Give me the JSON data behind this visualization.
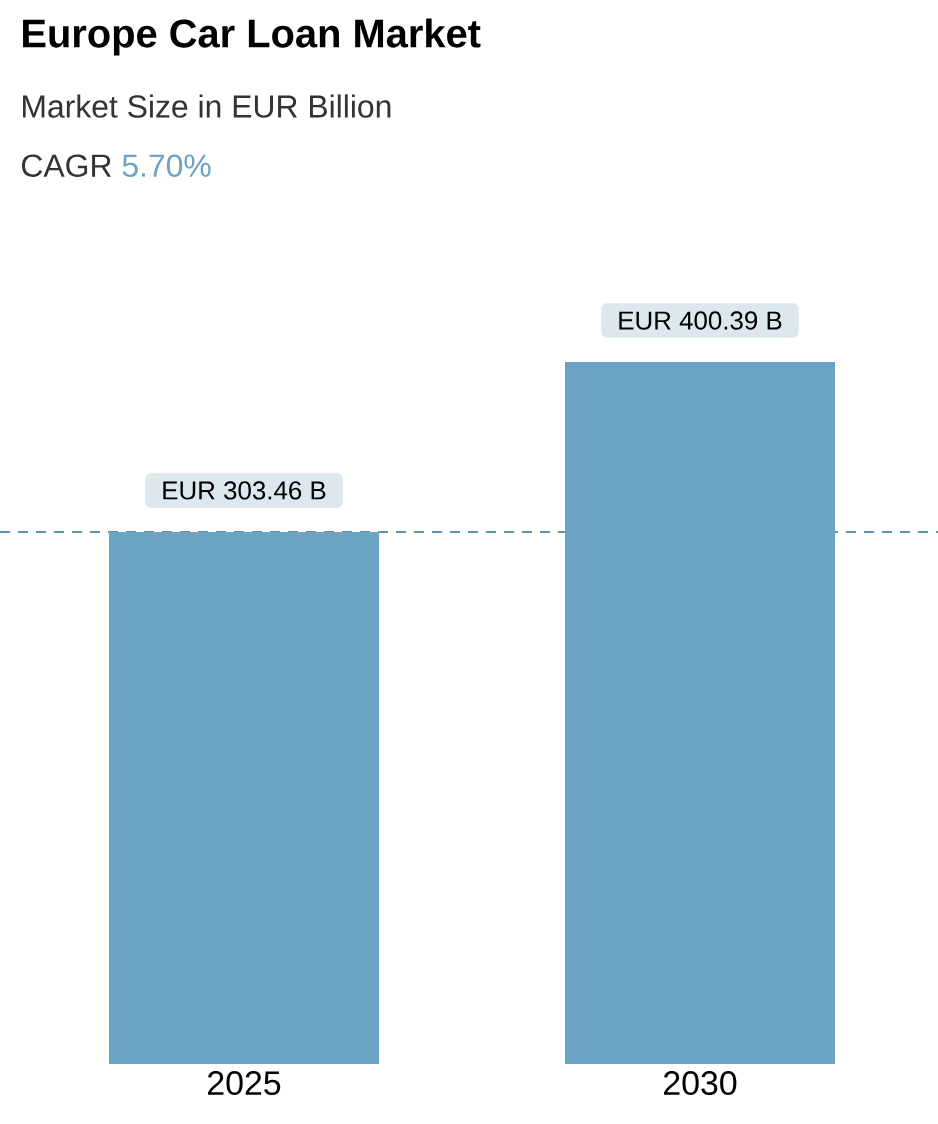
{
  "chart_data": {
    "type": "bar",
    "title": "Europe Car Loan Market",
    "subtitle": "Market Size in EUR Billion",
    "annotations": [
      "CAGR",
      "5.70%"
    ],
    "categories": [
      "2025",
      "2030"
    ],
    "values": [
      303.46,
      400.39
    ],
    "value_labels": [
      "EUR 303.46 B",
      "EUR 400.39 B"
    ],
    "color": "#6aa3c3",
    "ref_lines": [
      {
        "axis": "y",
        "value": 303.46,
        "color": "#5f93b5",
        "line_style": "dashed"
      }
    ],
    "grid": false
  }
}
